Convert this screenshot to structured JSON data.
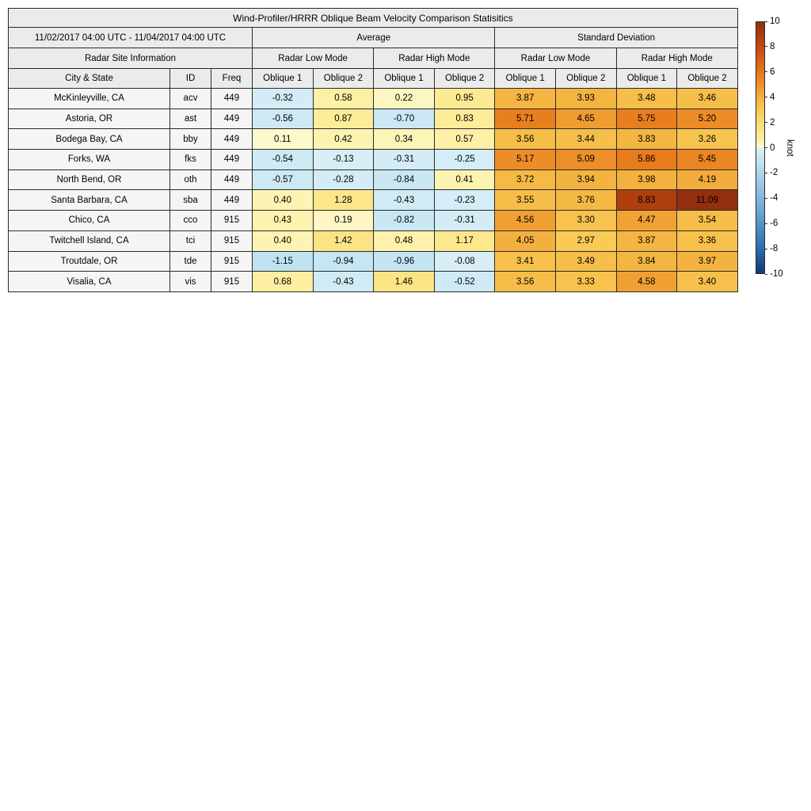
{
  "title": "Wind-Profiler/HRRR Oblique Beam Velocity Comparison Statisitics",
  "chart_data": {
    "type": "heatmap",
    "title": "Wind-Profiler/HRRR Oblique Beam Velocity Comparison Statisitics",
    "date_range": "11/02/2017 04:00 UTC - 11/04/2017 04:00 UTC",
    "site_info_header": "Radar Site Information",
    "group_headers": [
      "Average",
      "Standard Deviation"
    ],
    "mode_headers": [
      "Radar Low Mode",
      "Radar High Mode",
      "Radar Low Mode",
      "Radar High Mode"
    ],
    "columns": [
      "City & State",
      "ID",
      "Freq",
      "Oblique 1",
      "Oblique 2",
      "Oblique 1",
      "Oblique 2",
      "Oblique 1",
      "Oblique 2",
      "Oblique 1",
      "Oblique 2"
    ],
    "rows": [
      {
        "city": "McKinleyville, CA",
        "id": "acv",
        "freq": "449",
        "values": [
          -0.32,
          0.58,
          0.22,
          0.95,
          3.87,
          3.93,
          3.48,
          3.46
        ]
      },
      {
        "city": "Astoria, OR",
        "id": "ast",
        "freq": "449",
        "values": [
          -0.56,
          0.87,
          -0.7,
          0.83,
          5.71,
          4.65,
          5.75,
          5.2
        ]
      },
      {
        "city": "Bodega Bay, CA",
        "id": "bby",
        "freq": "449",
        "values": [
          0.11,
          0.42,
          0.34,
          0.57,
          3.56,
          3.44,
          3.83,
          3.26
        ]
      },
      {
        "city": "Forks, WA",
        "id": "fks",
        "freq": "449",
        "values": [
          -0.54,
          -0.13,
          -0.31,
          -0.25,
          5.17,
          5.09,
          5.86,
          5.45
        ]
      },
      {
        "city": "North Bend, OR",
        "id": "oth",
        "freq": "449",
        "values": [
          -0.57,
          -0.28,
          -0.84,
          0.41,
          3.72,
          3.94,
          3.98,
          4.19
        ]
      },
      {
        "city": "Santa Barbara, CA",
        "id": "sba",
        "freq": "449",
        "values": [
          0.4,
          1.28,
          -0.43,
          -0.23,
          3.55,
          3.76,
          8.83,
          11.09
        ]
      },
      {
        "city": "Chico, CA",
        "id": "cco",
        "freq": "915",
        "values": [
          0.43,
          0.19,
          -0.82,
          -0.31,
          4.56,
          3.3,
          4.47,
          3.54
        ]
      },
      {
        "city": "Twitchell Island, CA",
        "id": "tci",
        "freq": "915",
        "values": [
          0.4,
          1.42,
          0.48,
          1.17,
          4.05,
          2.97,
          3.87,
          3.36
        ]
      },
      {
        "city": "Troutdale, OR",
        "id": "tde",
        "freq": "915",
        "values": [
          -1.15,
          -0.94,
          -0.96,
          -0.08,
          3.41,
          3.49,
          3.84,
          3.97
        ]
      },
      {
        "city": "Visalia, CA",
        "id": "vis",
        "freq": "915",
        "values": [
          0.68,
          -0.43,
          1.46,
          -0.52,
          3.56,
          3.33,
          4.58,
          3.4
        ]
      }
    ],
    "colorbar": {
      "label": "knot",
      "vmin": -10,
      "vmax": 10,
      "ticks": [
        "10",
        "8",
        "6",
        "4",
        "2",
        "0",
        "-2",
        "-4",
        "-6",
        "-8",
        "-10"
      ],
      "colormap_warm": [
        [
          0,
          "#fefbd5"
        ],
        [
          0.5,
          "#fdf1a9"
        ],
        [
          1,
          "#fdea92"
        ],
        [
          1.5,
          "#fce383"
        ],
        [
          2,
          "#fbdc76"
        ],
        [
          3,
          "#f9ca54"
        ],
        [
          4,
          "#f3b23f"
        ],
        [
          5,
          "#ed912a"
        ],
        [
          6,
          "#e6781a"
        ],
        [
          8,
          "#c44910"
        ],
        [
          10,
          "#912f0e"
        ]
      ],
      "colormap_cool": [
        [
          -10,
          "#103a70"
        ],
        [
          -8,
          "#2d6cb2"
        ],
        [
          -6,
          "#5596c8"
        ],
        [
          -4,
          "#82b9dc"
        ],
        [
          -2,
          "#acd6eb"
        ],
        [
          -1,
          "#c4e5f2"
        ],
        [
          0,
          "#daeff7"
        ]
      ]
    }
  }
}
